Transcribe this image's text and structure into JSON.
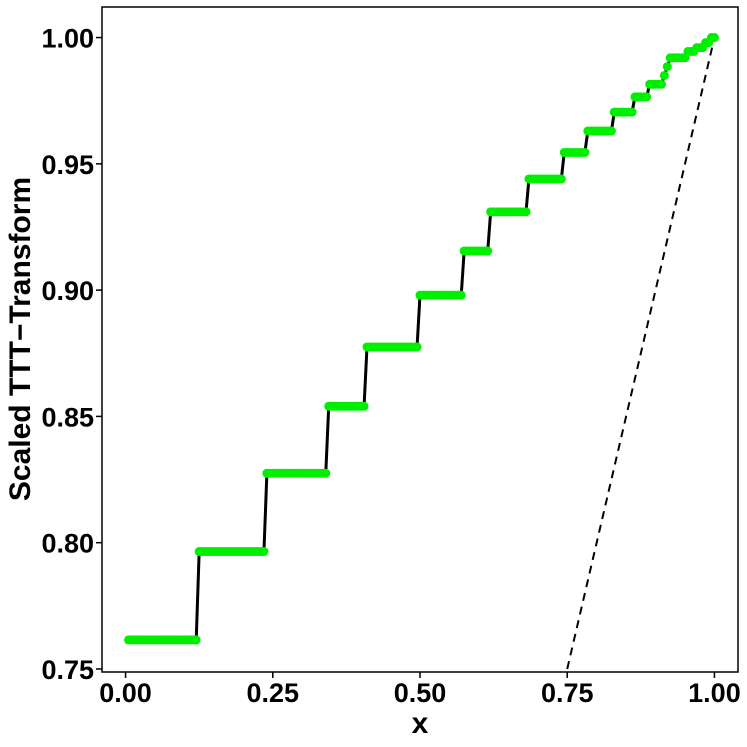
{
  "chart_data": {
    "type": "line",
    "xlabel": "x",
    "ylabel": "Scaled TTT−Transform",
    "xlim": [
      -0.04,
      1.04
    ],
    "ylim": [
      0.7488,
      1.0121
    ],
    "xticks": [
      0.0,
      0.25,
      0.5,
      0.75,
      1.0
    ],
    "xtick_labels": [
      "0.00",
      "0.25",
      "0.50",
      "0.75",
      "1.00"
    ],
    "yticks": [
      0.75,
      0.8,
      0.85,
      0.9,
      0.95,
      1.0
    ],
    "ytick_labels": [
      "0.75",
      "0.80",
      "0.85",
      "0.90",
      "0.95",
      "1.00"
    ],
    "grid": false,
    "legend": "none",
    "colors": {
      "points": "#00ee00",
      "line": "#000000",
      "reference": "#000000"
    },
    "steps": [
      {
        "x_start": 0.005,
        "x_end": 0.12,
        "y": 0.7615
      },
      {
        "x_start": 0.125,
        "x_end": 0.235,
        "y": 0.7965
      },
      {
        "x_start": 0.24,
        "x_end": 0.34,
        "y": 0.8275
      },
      {
        "x_start": 0.345,
        "x_end": 0.405,
        "y": 0.854
      },
      {
        "x_start": 0.41,
        "x_end": 0.495,
        "y": 0.8775
      },
      {
        "x_start": 0.5,
        "x_end": 0.57,
        "y": 0.898
      },
      {
        "x_start": 0.575,
        "x_end": 0.615,
        "y": 0.9155
      },
      {
        "x_start": 0.62,
        "x_end": 0.68,
        "y": 0.931
      },
      {
        "x_start": 0.685,
        "x_end": 0.74,
        "y": 0.944
      },
      {
        "x_start": 0.745,
        "x_end": 0.78,
        "y": 0.9545
      },
      {
        "x_start": 0.785,
        "x_end": 0.825,
        "y": 0.963
      },
      {
        "x_start": 0.83,
        "x_end": 0.86,
        "y": 0.9705
      },
      {
        "x_start": 0.865,
        "x_end": 0.885,
        "y": 0.9765
      },
      {
        "x_start": 0.89,
        "x_end": 0.91,
        "y": 0.9815
      },
      {
        "x_start": 0.915,
        "x_end": 0.915,
        "y": 0.985
      },
      {
        "x_start": 0.92,
        "x_end": 0.92,
        "y": 0.9885
      },
      {
        "x_start": 0.925,
        "x_end": 0.95,
        "y": 0.992
      },
      {
        "x_start": 0.955,
        "x_end": 0.965,
        "y": 0.9945
      },
      {
        "x_start": 0.97,
        "x_end": 0.98,
        "y": 0.996
      },
      {
        "x_start": 0.985,
        "x_end": 0.99,
        "y": 0.998
      },
      {
        "x_start": 0.995,
        "x_end": 1.0,
        "y": 1.0
      }
    ],
    "point_spacing": 0.005,
    "reference_line": {
      "x": [
        0.75,
        1.0
      ],
      "y": [
        0.75,
        1.0
      ],
      "style": "dashed"
    }
  }
}
